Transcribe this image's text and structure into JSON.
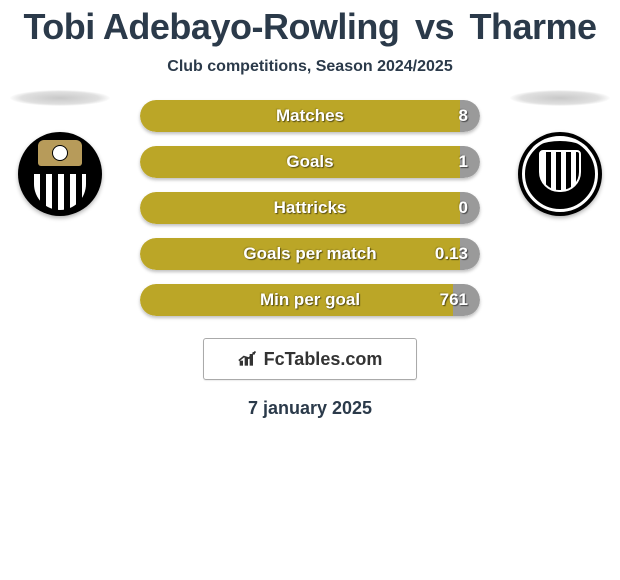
{
  "title": {
    "player1": "Tobi Adebayo-Rowling",
    "vs": "vs",
    "player2": "Tharme"
  },
  "subtitle": "Club competitions, Season 2024/2025",
  "colors": {
    "left_fill": "#bba627",
    "right_fill": "#9a9a9a",
    "text": "#2b3a4a"
  },
  "stats": [
    {
      "label": "Matches",
      "left_pct": 94,
      "right_value": "8"
    },
    {
      "label": "Goals",
      "left_pct": 94,
      "right_value": "1"
    },
    {
      "label": "Hattricks",
      "left_pct": 94,
      "right_value": "0"
    },
    {
      "label": "Goals per match",
      "left_pct": 94,
      "right_value": "0.13"
    },
    {
      "label": "Min per goal",
      "left_pct": 92,
      "right_value": "761"
    }
  ],
  "site_logo_text": "FcTables.com",
  "date": "7 january 2025"
}
